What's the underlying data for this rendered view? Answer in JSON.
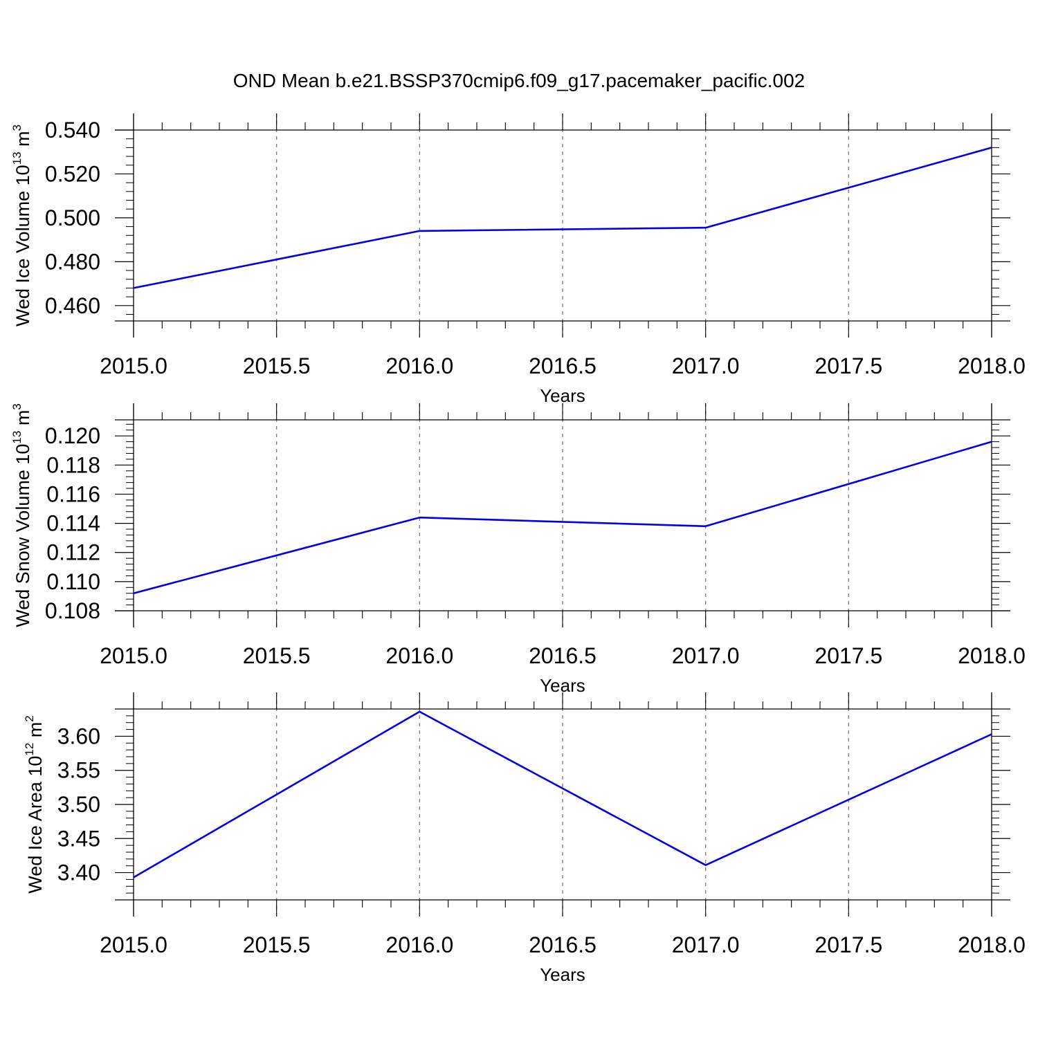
{
  "figure": {
    "title": "OND Mean b.e21.BSSP370cmip6.f09_g17.pacemaker_pacific.002",
    "line_color": "#0000ee",
    "grid_color": "#808080",
    "axis_color": "#000000"
  },
  "chart_data": [
    {
      "type": "line",
      "title": "",
      "xlabel": "Years",
      "ylabel_text": "Wed Ice Volume 10",
      "ylabel_exp": "13",
      "ylabel_unit": " m",
      "ylabel_unit_exp": "3",
      "xlim": [
        2015.0,
        2018.0
      ],
      "ylim": [
        0.453,
        0.54
      ],
      "x_ticks": [
        2015.0,
        2015.5,
        2016.0,
        2016.5,
        2017.0,
        2017.5,
        2018.0
      ],
      "x_tick_labels": [
        "2015.0",
        "2015.5",
        "2016.0",
        "2016.5",
        "2017.0",
        "2017.5",
        "2018.0"
      ],
      "y_ticks": [
        0.46,
        0.48,
        0.5,
        0.52,
        0.54
      ],
      "y_tick_labels": [
        "0.460",
        "0.480",
        "0.500",
        "0.520",
        "0.540"
      ],
      "y_minor_step": 0.004,
      "x_minor_step": 0.1,
      "grid": "x-dashed",
      "series": [
        {
          "x": [
            2015,
            2016,
            2017,
            2018
          ],
          "y": [
            0.468,
            0.494,
            0.4955,
            0.532
          ]
        }
      ]
    },
    {
      "type": "line",
      "title": "",
      "xlabel": "Years",
      "ylabel_text": "Wed Snow Volume 10",
      "ylabel_exp": "13",
      "ylabel_unit": " m",
      "ylabel_unit_exp": "3",
      "xlim": [
        2015.0,
        2018.0
      ],
      "ylim": [
        0.108,
        0.1211
      ],
      "x_ticks": [
        2015.0,
        2015.5,
        2016.0,
        2016.5,
        2017.0,
        2017.5,
        2018.0
      ],
      "x_tick_labels": [
        "2015.0",
        "2015.5",
        "2016.0",
        "2016.5",
        "2017.0",
        "2017.5",
        "2018.0"
      ],
      "y_ticks": [
        0.108,
        0.11,
        0.112,
        0.114,
        0.116,
        0.118,
        0.12
      ],
      "y_tick_labels": [
        "0.108",
        "0.110",
        "0.112",
        "0.114",
        "0.116",
        "0.118",
        "0.120"
      ],
      "y_minor_step": 0.0004,
      "x_minor_step": 0.1,
      "grid": "x-dashed",
      "series": [
        {
          "x": [
            2015,
            2016,
            2017,
            2018
          ],
          "y": [
            0.1092,
            0.1144,
            0.1138,
            0.1196
          ]
        }
      ]
    },
    {
      "type": "line",
      "title": "",
      "xlabel": "Years",
      "ylabel_text": "Wed Ice Area 10",
      "ylabel_exp": "12",
      "ylabel_unit": " m",
      "ylabel_unit_exp": "2",
      "xlim": [
        2015.0,
        2018.0
      ],
      "ylim": [
        3.36,
        3.64
      ],
      "x_ticks": [
        2015.0,
        2015.5,
        2016.0,
        2016.5,
        2017.0,
        2017.5,
        2018.0
      ],
      "x_tick_labels": [
        "2015.0",
        "2015.5",
        "2016.0",
        "2016.5",
        "2017.0",
        "2017.5",
        "2018.0"
      ],
      "y_ticks": [
        3.4,
        3.45,
        3.5,
        3.55,
        3.6
      ],
      "y_tick_labels": [
        "3.40",
        "3.45",
        "3.50",
        "3.55",
        "3.60"
      ],
      "y_minor_step": 0.01,
      "x_minor_step": 0.1,
      "grid": "x-dashed",
      "series": [
        {
          "x": [
            2015,
            2016,
            2017,
            2018
          ],
          "y": [
            3.393,
            3.636,
            3.411,
            3.603
          ]
        }
      ]
    }
  ]
}
